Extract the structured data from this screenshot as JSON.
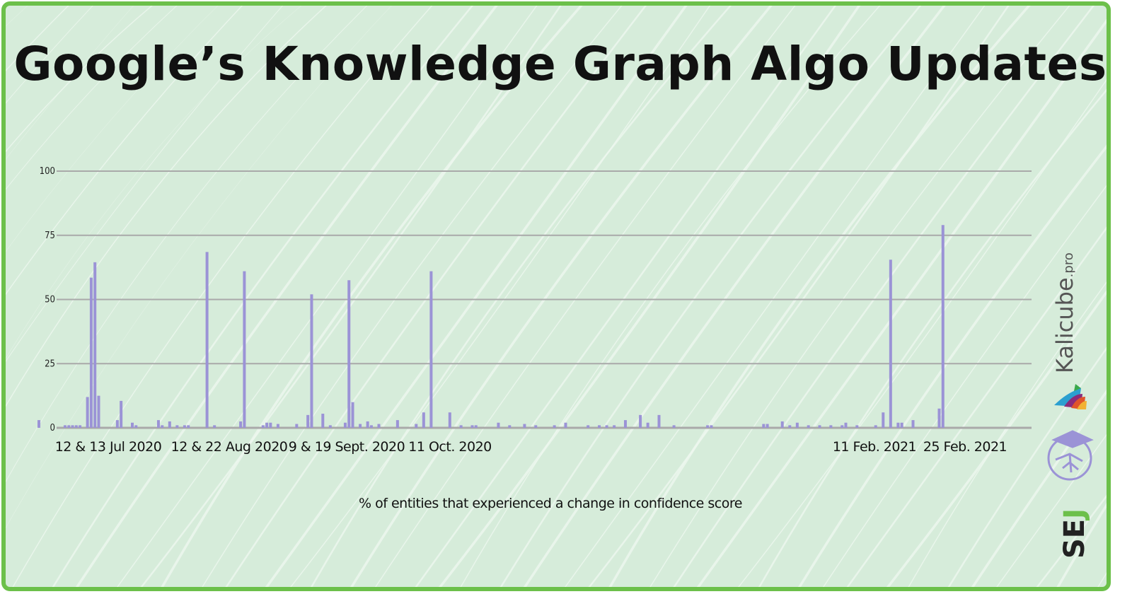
{
  "title": "Google’s Knowledge Graph Algo Updates",
  "logos": {
    "kalicube": "Kalicube",
    "kalicube_suffix": ".pro",
    "sej_s": "SE",
    "sej_j": "J"
  },
  "colors": {
    "bar": "#9b93d6",
    "border": "#6cc04a",
    "background": "#d6ecda",
    "grid": "#a9a9a9"
  },
  "chart_data": {
    "type": "bar",
    "title": "Google’s Knowledge Graph Algo Updates",
    "xlabel": "% of entities that experienced a change in confidence score",
    "ylabel": "",
    "ylim": [
      0,
      100
    ],
    "yticks": [
      "0",
      "25",
      "50",
      "75",
      "100"
    ],
    "xlim": [
      "2020-06-28",
      "2021-03-21"
    ],
    "grid": true,
    "x_annotations": [
      "12 & 13 Jul 2020",
      "12 & 22 Aug 2020",
      "9 & 19 Sept. 2020",
      "11 Oct. 2020",
      "11 Feb. 2021",
      "25 Feb. 2021"
    ],
    "points": [
      [
        "2020-06-28",
        3
      ],
      [
        "2020-07-05",
        1
      ],
      [
        "2020-07-06",
        1
      ],
      [
        "2020-07-07",
        1
      ],
      [
        "2020-07-08",
        1
      ],
      [
        "2020-07-09",
        1
      ],
      [
        "2020-07-11",
        12
      ],
      [
        "2020-07-12",
        58.5
      ],
      [
        "2020-07-13",
        64.5
      ],
      [
        "2020-07-14",
        12.5
      ],
      [
        "2020-07-19",
        3
      ],
      [
        "2020-07-20",
        10.5
      ],
      [
        "2020-07-23",
        2
      ],
      [
        "2020-07-24",
        1
      ],
      [
        "2020-07-30",
        3
      ],
      [
        "2020-07-31",
        1
      ],
      [
        "2020-08-02",
        2.5
      ],
      [
        "2020-08-04",
        1
      ],
      [
        "2020-08-06",
        1
      ],
      [
        "2020-08-07",
        1
      ],
      [
        "2020-08-12",
        68.5
      ],
      [
        "2020-08-14",
        1
      ],
      [
        "2020-08-21",
        2.5
      ],
      [
        "2020-08-22",
        61
      ],
      [
        "2020-08-27",
        1
      ],
      [
        "2020-08-28",
        2
      ],
      [
        "2020-08-29",
        2
      ],
      [
        "2020-08-31",
        1.5
      ],
      [
        "2020-09-05",
        1.5
      ],
      [
        "2020-09-08",
        5
      ],
      [
        "2020-09-09",
        52
      ],
      [
        "2020-09-12",
        5.5
      ],
      [
        "2020-09-14",
        1
      ],
      [
        "2020-09-18",
        2
      ],
      [
        "2020-09-19",
        57.5
      ],
      [
        "2020-09-20",
        10
      ],
      [
        "2020-09-22",
        1.5
      ],
      [
        "2020-09-24",
        2.5
      ],
      [
        "2020-09-25",
        1
      ],
      [
        "2020-09-27",
        1.5
      ],
      [
        "2020-10-02",
        3
      ],
      [
        "2020-10-07",
        1.5
      ],
      [
        "2020-10-09",
        6
      ],
      [
        "2020-10-11",
        61
      ],
      [
        "2020-10-16",
        6
      ],
      [
        "2020-10-19",
        1
      ],
      [
        "2020-10-22",
        1
      ],
      [
        "2020-10-23",
        1
      ],
      [
        "2020-10-29",
        2
      ],
      [
        "2020-11-01",
        1
      ],
      [
        "2020-11-05",
        1.5
      ],
      [
        "2020-11-08",
        1
      ],
      [
        "2020-11-13",
        1
      ],
      [
        "2020-11-16",
        2
      ],
      [
        "2020-11-22",
        1
      ],
      [
        "2020-11-25",
        1
      ],
      [
        "2020-11-27",
        1
      ],
      [
        "2020-11-29",
        1
      ],
      [
        "2020-12-02",
        3
      ],
      [
        "2020-12-06",
        5
      ],
      [
        "2020-12-08",
        2
      ],
      [
        "2020-12-11",
        5
      ],
      [
        "2020-12-15",
        1
      ],
      [
        "2020-12-24",
        1
      ],
      [
        "2020-12-25",
        1
      ],
      [
        "2021-01-08",
        1.5
      ],
      [
        "2021-01-09",
        1.5
      ],
      [
        "2021-01-13",
        2.5
      ],
      [
        "2021-01-15",
        1
      ],
      [
        "2021-01-17",
        2
      ],
      [
        "2021-01-20",
        1
      ],
      [
        "2021-01-23",
        1
      ],
      [
        "2021-01-26",
        1
      ],
      [
        "2021-01-29",
        1
      ],
      [
        "2021-01-30",
        2
      ],
      [
        "2021-02-02",
        1
      ],
      [
        "2021-02-07",
        1
      ],
      [
        "2021-02-09",
        6
      ],
      [
        "2021-02-11",
        65.5
      ],
      [
        "2021-02-13",
        2
      ],
      [
        "2021-02-14",
        2
      ],
      [
        "2021-02-17",
        3
      ],
      [
        "2021-02-24",
        7.5
      ],
      [
        "2021-02-25",
        79
      ]
    ]
  }
}
